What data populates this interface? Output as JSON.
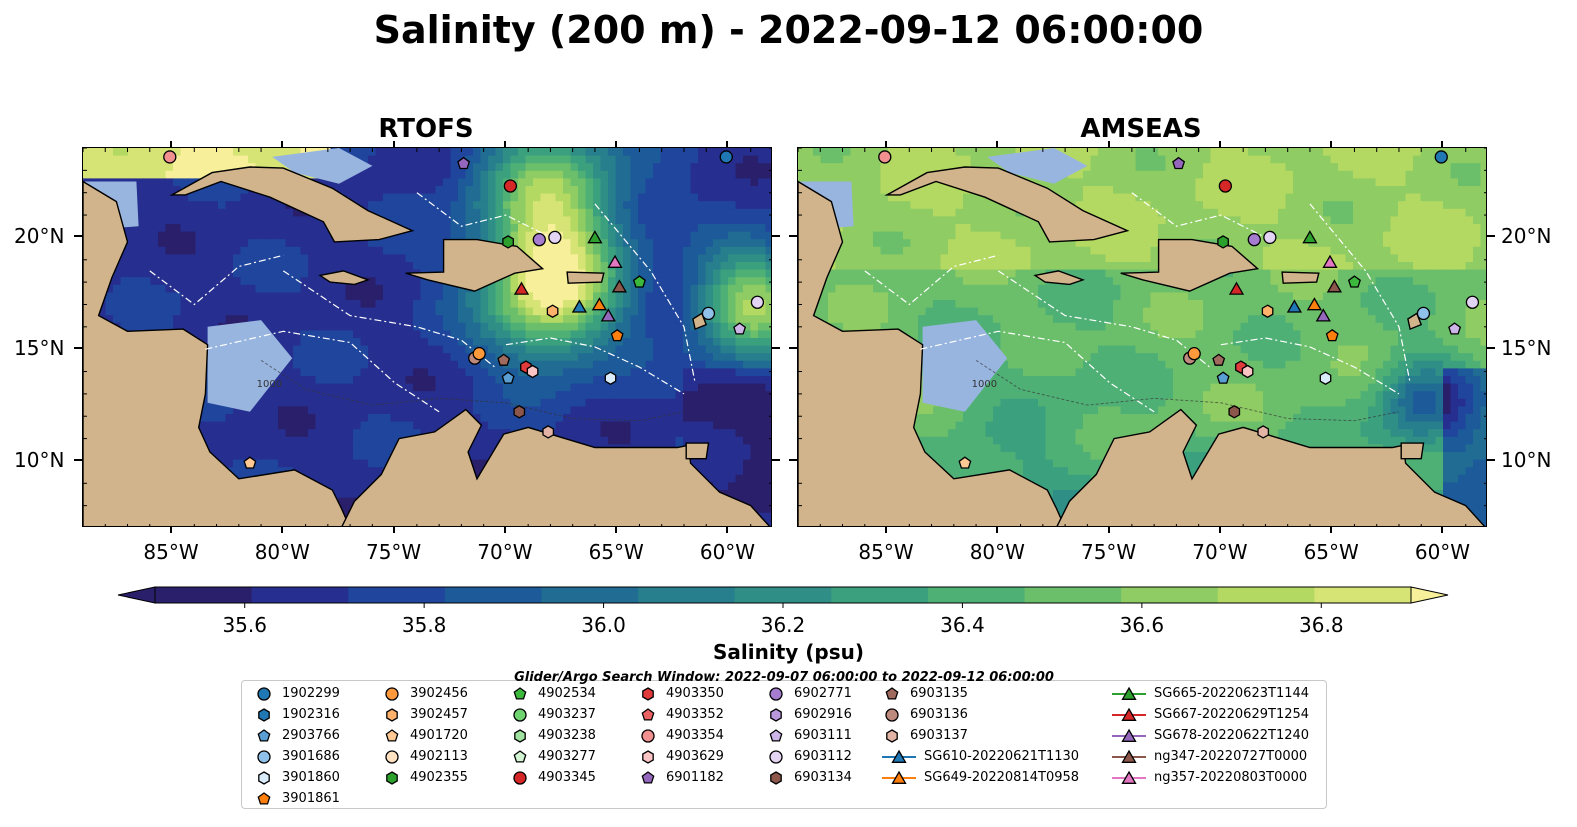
{
  "title": "Salinity (200 m) - 2022-09-12 06:00:00",
  "panels": [
    {
      "title": "RTOFS"
    },
    {
      "title": "AMSEAS"
    }
  ],
  "map": {
    "lon_range": [
      -89,
      -58
    ],
    "lat_range": [
      7,
      24
    ],
    "lon_ticks": [
      "85°W",
      "80°W",
      "75°W",
      "70°W",
      "65°W",
      "60°W"
    ],
    "lat_ticks": [
      "20°N",
      "15°N",
      "10°N"
    ],
    "land_color": "#d2b48c",
    "shallow_water_color": "#98b5e0",
    "isobath_label": "1000"
  },
  "colorbar": {
    "label": "Salinity (psu)",
    "ticks": [
      "35.6",
      "35.8",
      "36.0",
      "36.2",
      "36.4",
      "36.6",
      "36.8"
    ],
    "vmin": 35.5,
    "vmax": 36.9,
    "extend": "both",
    "colors": [
      "#2a1f6b",
      "#262f8f",
      "#1f459c",
      "#1c5a99",
      "#216c93",
      "#277e8c",
      "#2f8f86",
      "#3ba07e",
      "#4fb076",
      "#6cbf6a",
      "#8fcc63",
      "#b4d962",
      "#d6e375"
    ],
    "over_color": "#f7ef9a"
  },
  "legend": {
    "title": "Glider/Argo Search Window: 2022-09-07 06:00:00 to 2022-09-12 06:00:00",
    "columns": [
      [
        {
          "label": "1902299",
          "marker": "circle",
          "color": "#1f77b4"
        },
        {
          "label": "1902316",
          "marker": "hexagon",
          "color": "#1f77b4"
        },
        {
          "label": "2903766",
          "marker": "pentagon",
          "color": "#5a9fd4"
        },
        {
          "label": "3901686",
          "marker": "circle",
          "color": "#8fc1ea"
        },
        {
          "label": "3901860",
          "marker": "hexagon",
          "color": "#d8ecfa"
        },
        {
          "label": "3901861",
          "marker": "pentagon",
          "color": "#ff7f0e"
        }
      ],
      [
        {
          "label": "3902456",
          "marker": "circle",
          "color": "#ff9a3c"
        },
        {
          "label": "3902457",
          "marker": "hexagon",
          "color": "#ffb26b"
        },
        {
          "label": "4901720",
          "marker": "pentagon",
          "color": "#ffc994"
        },
        {
          "label": "4902113",
          "marker": "circle",
          "color": "#ffe2c2"
        },
        {
          "label": "4902355",
          "marker": "hexagon",
          "color": "#2ca02c"
        }
      ],
      [
        {
          "label": "4902534",
          "marker": "pentagon",
          "color": "#3cb83c"
        },
        {
          "label": "4903237",
          "marker": "circle",
          "color": "#6fd46f"
        },
        {
          "label": "4903238",
          "marker": "hexagon",
          "color": "#9fe39f"
        },
        {
          "label": "4903277",
          "marker": "pentagon",
          "color": "#d2f4d2"
        },
        {
          "label": "4903345",
          "marker": "circle",
          "color": "#d62728"
        }
      ],
      [
        {
          "label": "4903350",
          "marker": "hexagon",
          "color": "#e03a3c"
        },
        {
          "label": "4903352",
          "marker": "pentagon",
          "color": "#ea6163"
        },
        {
          "label": "4903354",
          "marker": "circle",
          "color": "#f29090"
        },
        {
          "label": "4903629",
          "marker": "hexagon",
          "color": "#fbc4c4"
        },
        {
          "label": "6901182",
          "marker": "pentagon",
          "color": "#9467bd"
        }
      ],
      [
        {
          "label": "6902771",
          "marker": "circle",
          "color": "#a57cd0"
        },
        {
          "label": "6902916",
          "marker": "hexagon",
          "color": "#b998dc"
        },
        {
          "label": "6903111",
          "marker": "pentagon",
          "color": "#cdb5e8"
        },
        {
          "label": "6903112",
          "marker": "circle",
          "color": "#e4d4f4"
        },
        {
          "label": "6903134",
          "marker": "hexagon",
          "color": "#8c564b"
        }
      ],
      [
        {
          "label": "6903135",
          "marker": "pentagon",
          "color": "#a16a5e"
        },
        {
          "label": "6903136",
          "marker": "circle",
          "color": "#bf8a7e"
        },
        {
          "label": "6903137",
          "marker": "hexagon",
          "color": "#e3b4a6"
        },
        {
          "label": "SG610-20220621T1130",
          "marker": "triangle-line",
          "color": "#1f77b4"
        },
        {
          "label": "SG649-20220814T0958",
          "marker": "triangle-line",
          "color": "#ff7f0e"
        }
      ],
      [
        {
          "label": "SG665-20220623T1144",
          "marker": "triangle-line",
          "color": "#2ca02c"
        },
        {
          "label": "SG667-20220629T1254",
          "marker": "triangle-line",
          "color": "#d62728"
        },
        {
          "label": "SG678-20220622T1240",
          "marker": "triangle-line",
          "color": "#9467bd"
        },
        {
          "label": "ng347-20220727T0000",
          "marker": "triangle-line",
          "color": "#8c564b"
        },
        {
          "label": "ng357-20220803T0000",
          "marker": "triangle-line",
          "color": "#e377c2"
        }
      ]
    ]
  },
  "observations": [
    {
      "id": "4903354",
      "lon": -85.1,
      "lat": 23.6
    },
    {
      "id": "1902299",
      "lon": -60.1,
      "lat": 23.6
    },
    {
      "id": "6901182",
      "lon": -71.9,
      "lat": 23.3
    },
    {
      "id": "4903345",
      "lon": -69.8,
      "lat": 22.3
    },
    {
      "id": "4902355",
      "lon": -69.9,
      "lat": 19.8
    },
    {
      "id": "6902771",
      "lon": -68.5,
      "lat": 19.9
    },
    {
      "id": "6903112",
      "lon": -67.8,
      "lat": 20.0
    },
    {
      "id": "SG665-20220623T1144",
      "lon": -66.0,
      "lat": 20.0
    },
    {
      "id": "ng357-20220803T0000",
      "lon": -65.1,
      "lat": 18.9
    },
    {
      "id": "4902534",
      "lon": -64.0,
      "lat": 18.0
    },
    {
      "id": "ng347-20220727T0000",
      "lon": -64.9,
      "lat": 17.8
    },
    {
      "id": "SG667-20220629T1254",
      "lon": -69.3,
      "lat": 17.7
    },
    {
      "id": "3902457",
      "lon": -67.9,
      "lat": 16.7
    },
    {
      "id": "SG610-20220621T1130",
      "lon": -66.7,
      "lat": 16.9
    },
    {
      "id": "SG649-20220814T0958",
      "lon": -65.8,
      "lat": 17.0
    },
    {
      "id": "SG678-20220622T1240",
      "lon": -65.4,
      "lat": 16.5
    },
    {
      "id": "3901861",
      "lon": -65.0,
      "lat": 15.6
    },
    {
      "id": "3901686",
      "lon": -60.9,
      "lat": 16.6
    },
    {
      "id": "6903111",
      "lon": -59.5,
      "lat": 15.9
    },
    {
      "id": "6903112",
      "lon": -58.7,
      "lat": 17.1
    },
    {
      "id": "6903136",
      "lon": -71.4,
      "lat": 14.6
    },
    {
      "id": "3902456",
      "lon": -71.2,
      "lat": 14.8
    },
    {
      "id": "6903135",
      "lon": -70.1,
      "lat": 14.5
    },
    {
      "id": "4903350",
      "lon": -69.1,
      "lat": 14.2
    },
    {
      "id": "4903629",
      "lon": -68.8,
      "lat": 14.0
    },
    {
      "id": "2903766",
      "lon": -69.9,
      "lat": 13.7
    },
    {
      "id": "3901860",
      "lon": -65.3,
      "lat": 13.7
    },
    {
      "id": "6903134",
      "lon": -69.4,
      "lat": 12.2
    },
    {
      "id": "6903137",
      "lon": -68.1,
      "lat": 11.3
    },
    {
      "id": "4901720",
      "lon": -81.5,
      "lat": 9.9
    }
  ]
}
